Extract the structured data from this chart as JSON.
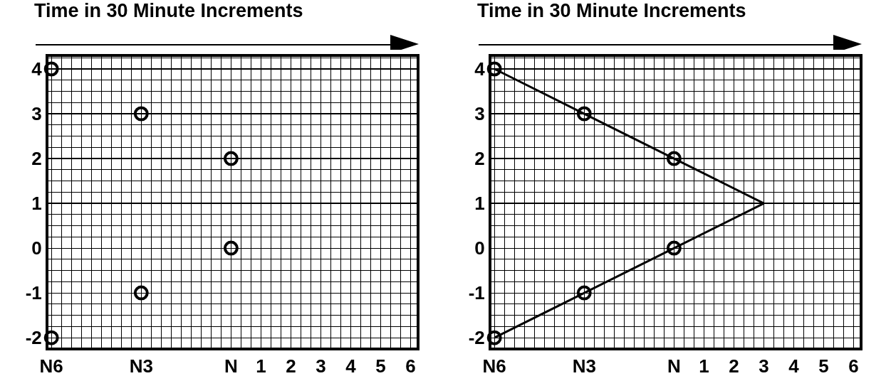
{
  "chart_data": [
    {
      "type": "scatter",
      "title": "Time in 30 Minute Increments",
      "xlim": [
        -6.1,
        6.2
      ],
      "ylim": [
        -2.22,
        4.27
      ],
      "xticks": [
        {
          "value": -6,
          "label": "N6"
        },
        {
          "value": -3,
          "label": "N3"
        },
        {
          "value": 0,
          "label": "N"
        },
        1,
        2,
        3,
        4,
        5,
        6
      ],
      "yticks": [
        -2,
        -1,
        0,
        1,
        2,
        3,
        4
      ],
      "grid": true,
      "marker": "circle",
      "series": [
        {
          "color": "#000000",
          "x": [
            -6,
            -3,
            0,
            0,
            -3,
            -6
          ],
          "values": [
            4,
            3,
            2,
            0,
            -1,
            -2
          ]
        }
      ]
    },
    {
      "type": "scatter",
      "title": "Time in 30 Minute Increments",
      "xlim": [
        -6.1,
        6.2
      ],
      "ylim": [
        -2.22,
        4.27
      ],
      "xticks": [
        {
          "value": -6,
          "label": "N6"
        },
        {
          "value": -3,
          "label": "N3"
        },
        {
          "value": 0,
          "label": "N"
        },
        1,
        2,
        3,
        4,
        5,
        6
      ],
      "yticks": [
        -2,
        -1,
        0,
        1,
        2,
        3,
        4
      ],
      "grid": true,
      "series": [
        {
          "color": "#000000",
          "marker": "circle",
          "x": [
            -6,
            -3,
            0,
            0,
            -3,
            -6
          ],
          "values": [
            4,
            3,
            2,
            0,
            -1,
            -2
          ]
        },
        {
          "type": "line",
          "color": "#000000",
          "marker": "none",
          "line_style": "solid",
          "x": [
            -6,
            -3,
            0,
            3,
            0,
            -3,
            -6
          ],
          "values": [
            4,
            3,
            2,
            1,
            0,
            -1,
            -2
          ]
        }
      ]
    }
  ]
}
